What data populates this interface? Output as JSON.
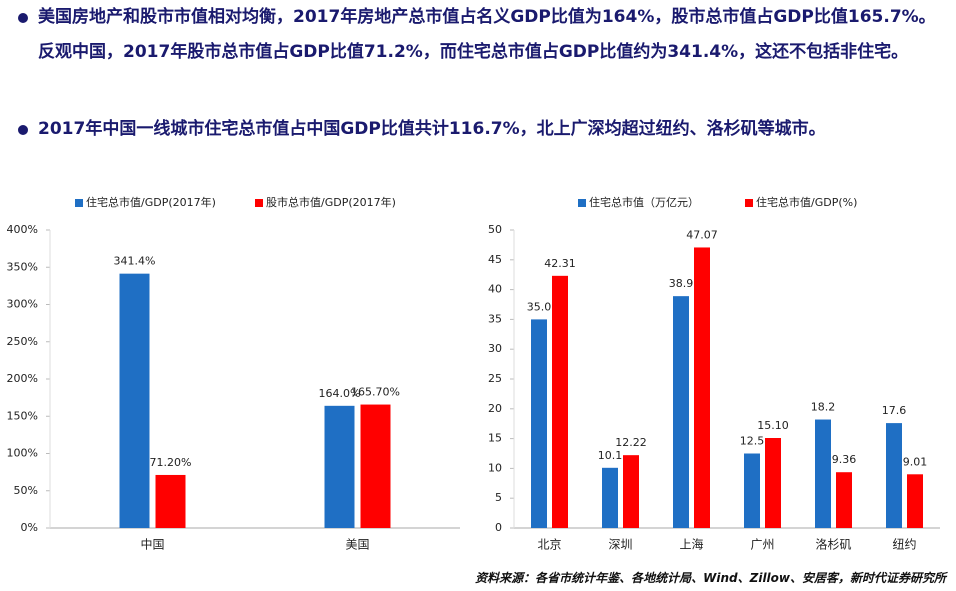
{
  "bullets": [
    "美国房地产和股市市值相对均衡，2017年房地产总市值占名义GDP比值为164%，股市总市值占GDP比值165.7%。反观中国，2017年股市总市值占GDP比值71.2%，而住宅总市值占GDP比值约为341.4%，这还不包括非住宅。",
    "2017年中国一线城市住宅总市值占中国GDP比值共计116.7%，北上广深均超过纽约、洛杉矶等城市。"
  ],
  "source": "资料来源：各省市统计年鉴、各地统计局、Wind、Zillow、安居客，新时代证券研究所",
  "chart_data": [
    {
      "type": "bar",
      "categories": [
        "中国",
        "美国"
      ],
      "series": [
        {
          "name": "住宅总市值/GDP(2017年)",
          "color": "#1f6fc4",
          "values": [
            341.4,
            164.0
          ],
          "value_labels": [
            "341.4%",
            "164.0%"
          ]
        },
        {
          "name": "股市总市值/GDP(2017年)",
          "color": "#ff0000",
          "values": [
            71.2,
            165.7
          ],
          "value_labels": [
            "71.20%",
            "165.70%"
          ]
        }
      ],
      "ylim": [
        0,
        400
      ],
      "yticks": [
        {
          "value": 0,
          "label": "0%"
        },
        {
          "value": 50,
          "label": "50%"
        },
        {
          "value": 100,
          "label": "100%"
        },
        {
          "value": 150,
          "label": "150%"
        },
        {
          "value": 200,
          "label": "200%"
        },
        {
          "value": 250,
          "label": "250%"
        },
        {
          "value": 300,
          "label": "300%"
        },
        {
          "value": 350,
          "label": "350%"
        },
        {
          "value": 400,
          "label": "400%"
        }
      ]
    },
    {
      "type": "bar",
      "categories": [
        "北京",
        "深圳",
        "上海",
        "广州",
        "洛杉矶",
        "纽约"
      ],
      "series": [
        {
          "name": "住宅总市值（万亿元）",
          "color": "#1f6fc4",
          "values": [
            35.0,
            10.1,
            38.9,
            12.5,
            18.2,
            17.6
          ],
          "value_labels": [
            "35.0",
            "10.1",
            "38.9",
            "12.5",
            "18.2",
            "17.6"
          ]
        },
        {
          "name": "住宅总市值/GDP(%)",
          "color": "#ff0000",
          "values": [
            42.31,
            12.22,
            47.07,
            15.1,
            9.36,
            9.01
          ],
          "value_labels": [
            "42.31",
            "12.22",
            "47.07",
            "15.10",
            "9.36",
            "9.01"
          ]
        }
      ],
      "ylim": [
        0,
        50
      ],
      "yticks": [
        0,
        5,
        10,
        15,
        20,
        25,
        30,
        35,
        40,
        45,
        50
      ]
    }
  ]
}
